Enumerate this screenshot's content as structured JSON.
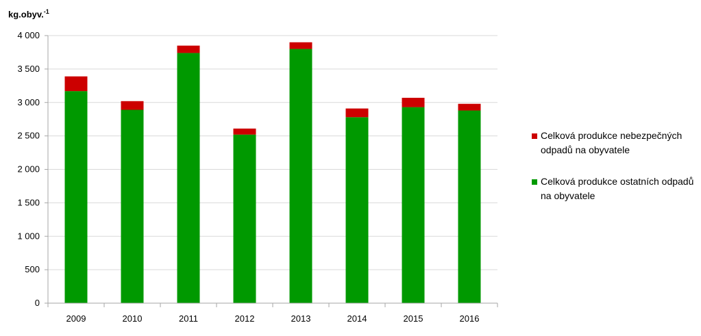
{
  "chart_data": {
    "type": "bar",
    "stacked": true,
    "ylabel": "kg.obyv.",
    "ylabel_sup": "-1",
    "ylim": [
      0,
      4000
    ],
    "yticks": [
      0,
      500,
      1000,
      1500,
      2000,
      2500,
      3000,
      3500,
      4000
    ],
    "ytick_labels": [
      "0",
      "500",
      "1 000",
      "1 500",
      "2 000",
      "2 500",
      "3 000",
      "3 500",
      "4 000"
    ],
    "grid": true,
    "legend_position": "right",
    "categories": [
      "2009",
      "2010",
      "2011",
      "2012",
      "2013",
      "2014",
      "2015",
      "2016"
    ],
    "series": [
      {
        "name": "Celková produkce ostatních odpadů na obyvatele",
        "color": "#009900",
        "values": [
          3170,
          2890,
          3740,
          2520,
          3800,
          2780,
          2930,
          2880
        ]
      },
      {
        "name": "Celková produkce nebezpečných odpadů na obyvatele",
        "color": "#cc0000",
        "values": [
          220,
          130,
          110,
          90,
          100,
          130,
          140,
          100
        ]
      }
    ],
    "legend_order": [
      1,
      0
    ]
  }
}
